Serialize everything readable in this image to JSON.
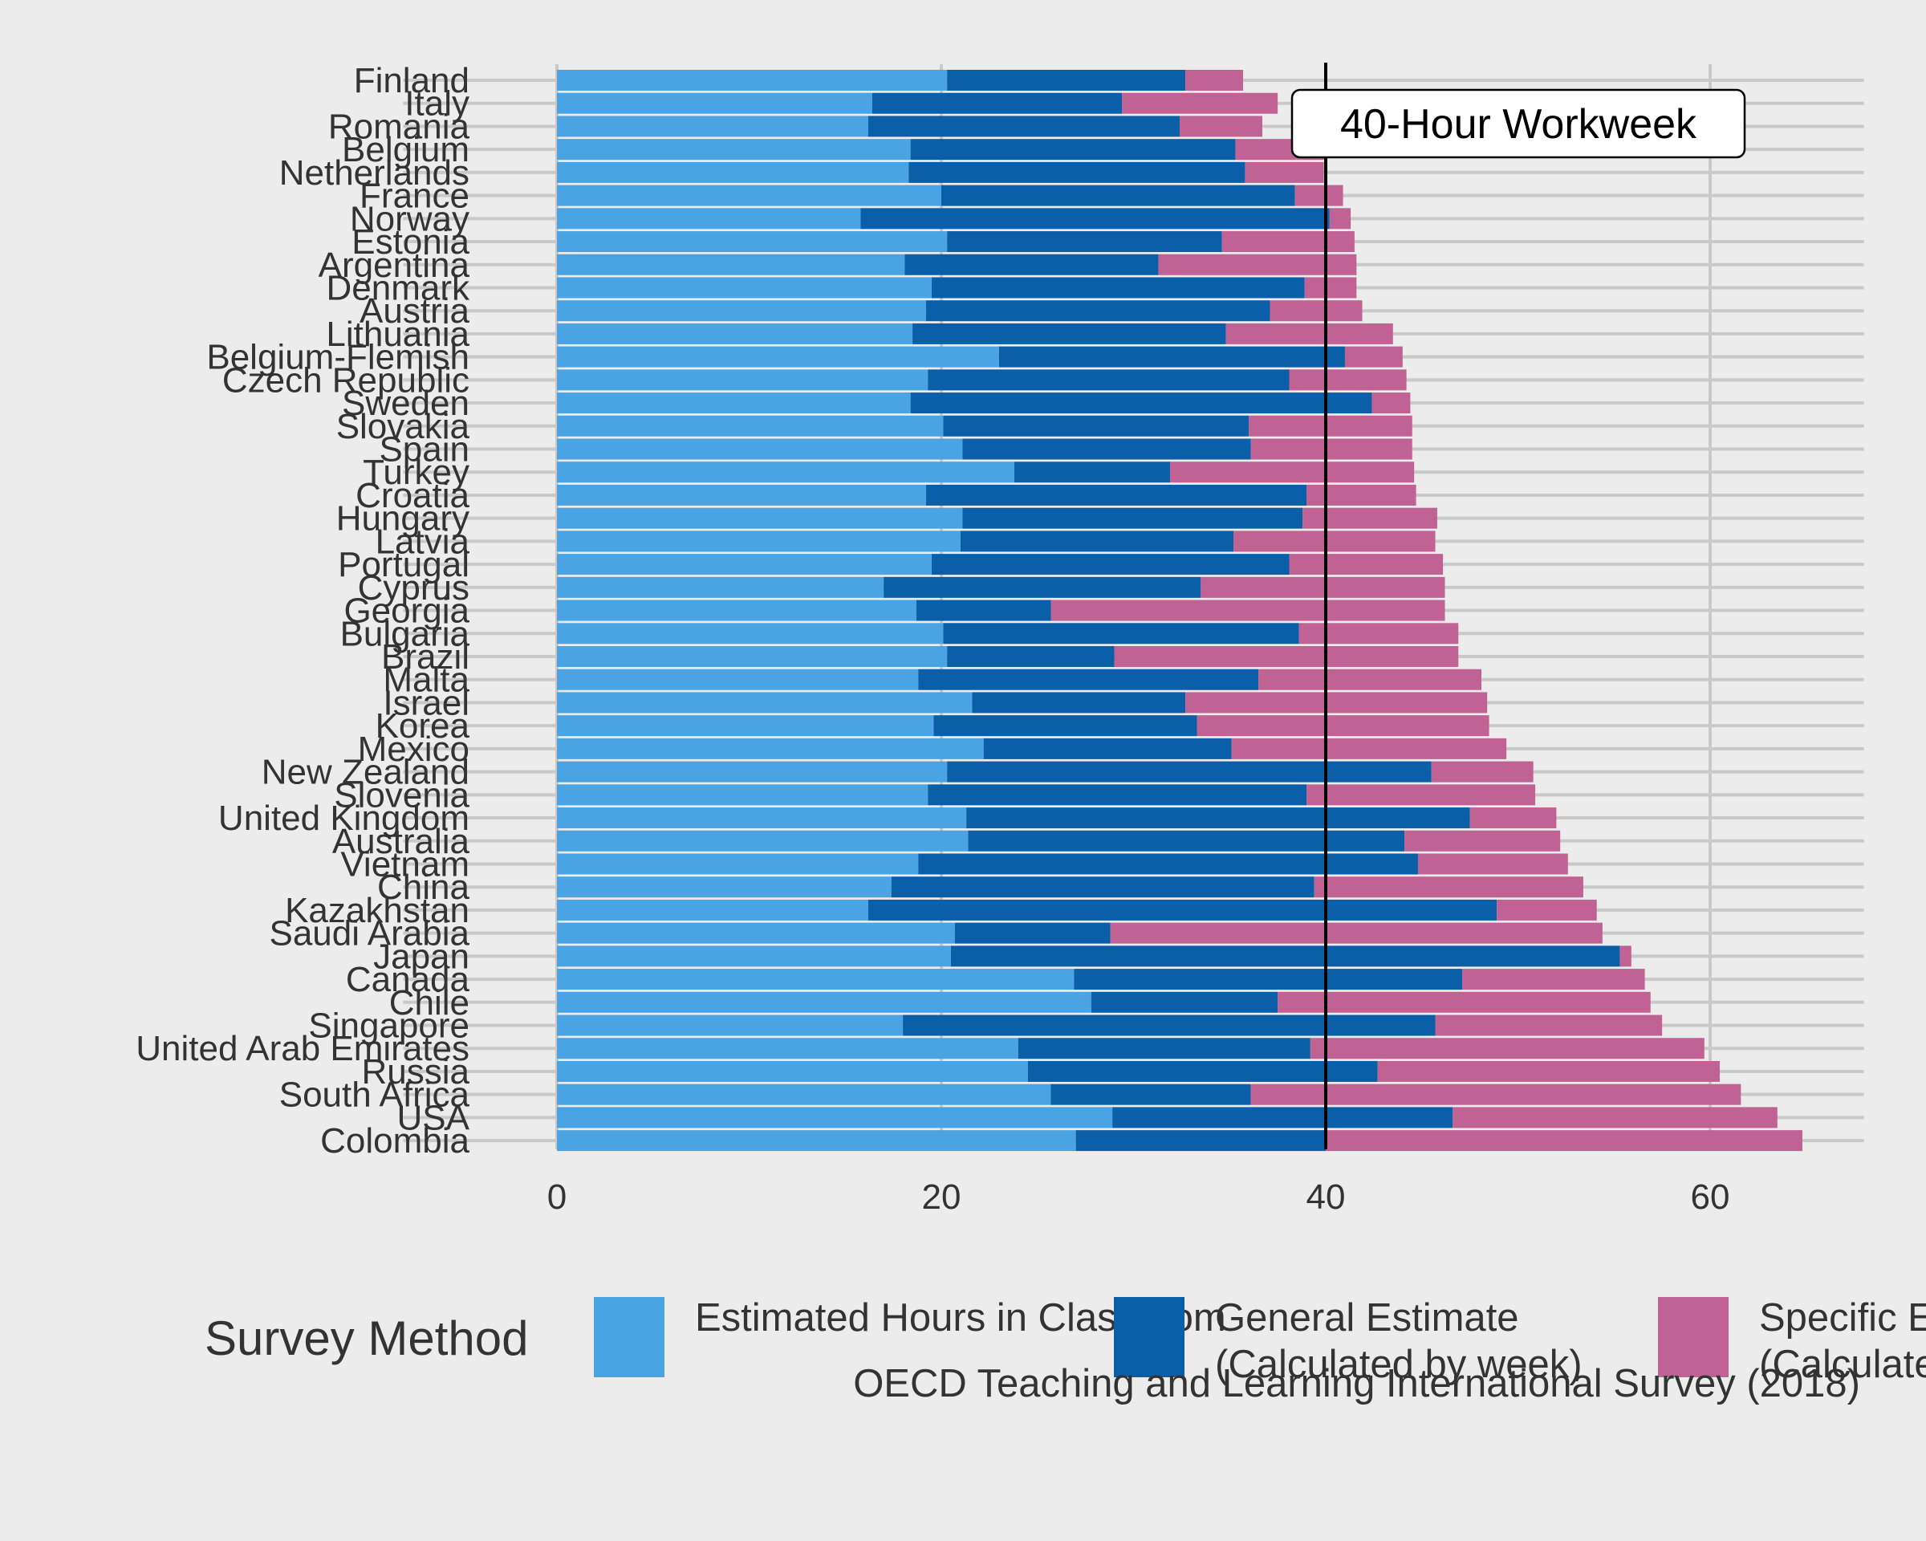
{
  "chart_data": {
    "type": "bar",
    "orientation": "horizontal",
    "stacked": true,
    "title": "",
    "xlabel": "",
    "ylabel": "",
    "xlim": [
      -8,
      68
    ],
    "x_ticks": [
      0,
      20,
      40,
      60
    ],
    "grid": true,
    "legend_title": "Survey Method",
    "legend_position": "bottom",
    "caption": "OECD Teaching and Learning International Survey (2018)",
    "reference_line": {
      "x": 40,
      "label": "40-Hour Workweek"
    },
    "colors": {
      "classroom": "#4aa3e2",
      "general": "#0b5ea8",
      "specific": "#c06293"
    },
    "categories": [
      "Finland",
      "Italy",
      "Romania",
      "Belgium",
      "Netherlands",
      "France",
      "Norway",
      "Estonia",
      "Argentina",
      "Denmark",
      "Austria",
      "Lithuania",
      "Belgium-Flemish",
      "Czech Republic",
      "Sweden",
      "Slovakia",
      "Spain",
      "Turkey",
      "Croatia",
      "Hungary",
      "Latvia",
      "Portugal",
      "Cyprus",
      "Georgia",
      "Bulgaria",
      "Brazil",
      "Malta",
      "Israel",
      "Korea",
      "Mexico",
      "New Zealand",
      "Slovenia",
      "United Kingdom",
      "Australia",
      "Vietnam",
      "China",
      "Kazakhstan",
      "Saudi Arabia",
      "Japan",
      "Canada",
      "Chile",
      "Singapore",
      "United Arab Emirates",
      "Russia",
      "South Africa",
      "USA",
      "Colombia"
    ],
    "series": [
      {
        "name": "Estimated Hours in Classroom",
        "values": [
          20.3,
          16.4,
          16.2,
          18.4,
          18.3,
          20.0,
          15.8,
          20.3,
          18.1,
          19.5,
          19.2,
          18.5,
          23.0,
          19.3,
          18.4,
          20.1,
          21.1,
          23.8,
          19.2,
          21.1,
          21.0,
          19.5,
          17.0,
          18.7,
          20.1,
          20.3,
          18.8,
          21.6,
          19.6,
          22.2,
          20.3,
          19.3,
          21.3,
          21.4,
          18.8,
          17.4,
          16.2,
          20.7,
          20.5,
          26.9,
          27.8,
          18.0,
          24.0,
          24.5,
          25.7,
          28.9,
          27.0
        ]
      },
      {
        "name": "General Estimate\n(Calculated by week)",
        "values": [
          12.4,
          13.0,
          16.2,
          16.9,
          17.5,
          18.4,
          24.4,
          14.3,
          13.2,
          19.4,
          17.9,
          16.3,
          18.0,
          18.8,
          24.0,
          15.9,
          15.0,
          8.1,
          19.8,
          17.7,
          14.2,
          18.6,
          16.5,
          7.0,
          18.5,
          8.7,
          17.7,
          11.1,
          13.7,
          12.9,
          25.2,
          19.7,
          26.2,
          22.7,
          26.0,
          22.0,
          32.7,
          8.1,
          34.8,
          20.2,
          9.7,
          27.7,
          15.2,
          18.2,
          10.4,
          17.7,
          13.0
        ]
      },
      {
        "name": "Specific Estimate\n(Calculated by day)",
        "values": [
          3.0,
          8.1,
          4.3,
          4.7,
          4.1,
          2.5,
          1.1,
          6.9,
          10.3,
          2.7,
          4.8,
          8.7,
          3.0,
          6.1,
          2.0,
          8.5,
          8.4,
          12.7,
          5.7,
          7.0,
          10.5,
          8.0,
          12.7,
          20.5,
          8.3,
          17.9,
          11.6,
          15.7,
          15.2,
          14.3,
          5.3,
          11.9,
          4.5,
          8.1,
          7.8,
          14.0,
          5.2,
          25.6,
          0.6,
          9.5,
          19.4,
          11.8,
          20.5,
          17.8,
          25.5,
          16.9,
          24.8
        ]
      }
    ]
  }
}
